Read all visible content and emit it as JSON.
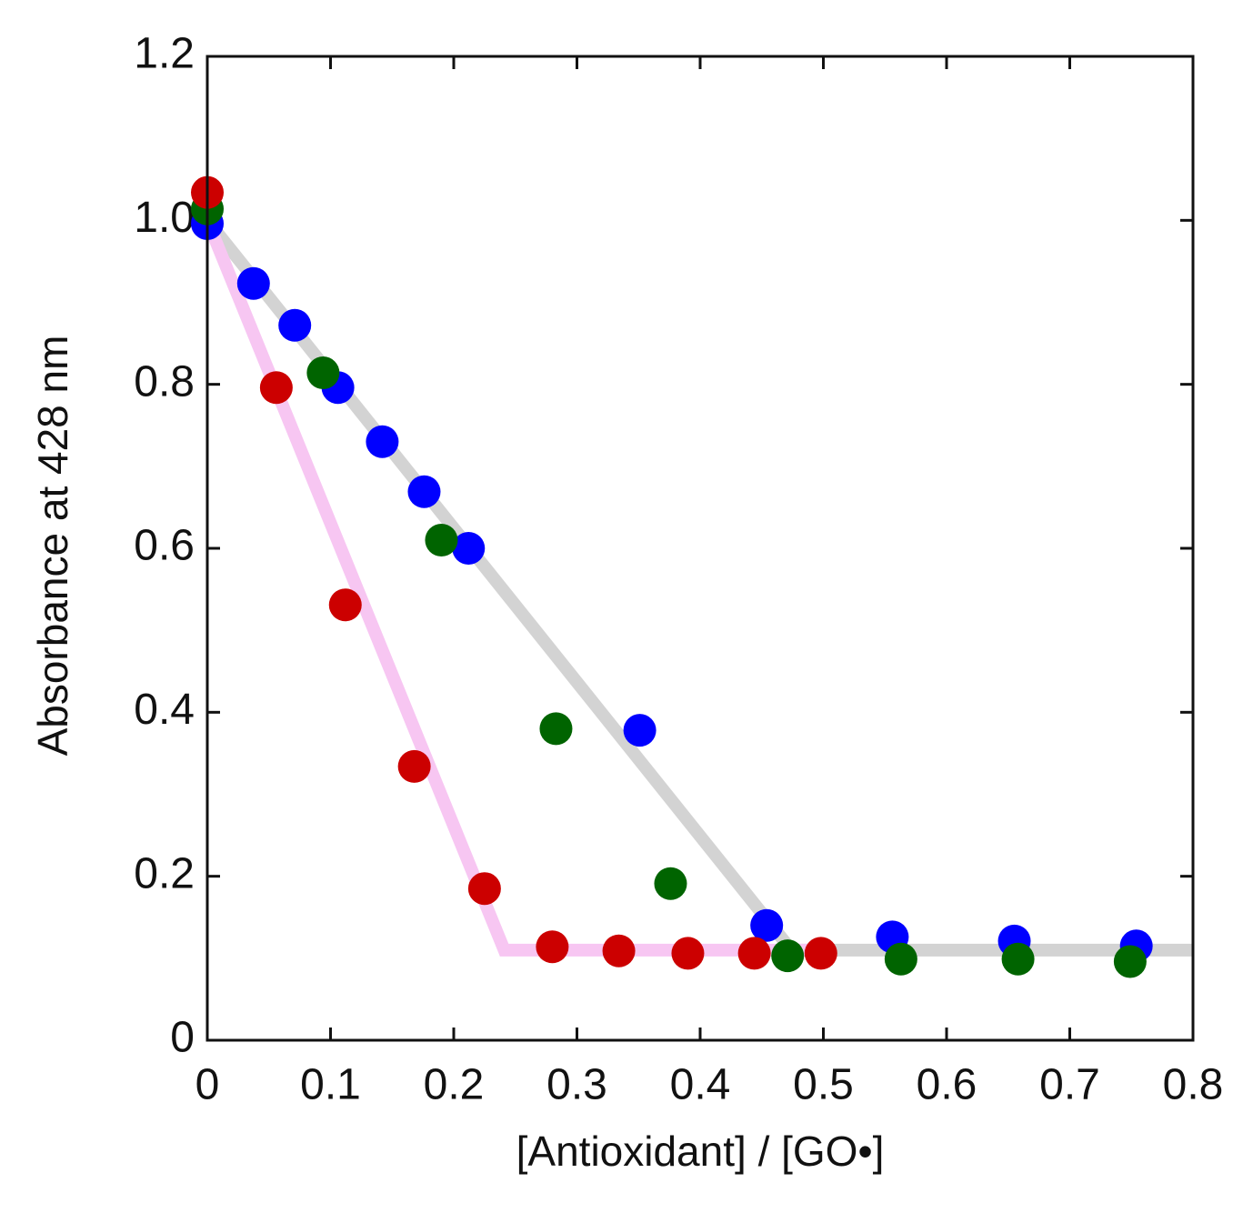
{
  "chart_data": {
    "type": "scatter",
    "x_label": "[Antioxidant] / [GO•]",
    "y_label": "Absorbance at 428 nm",
    "xlim": [
      0,
      0.8
    ],
    "xticks": [
      0,
      0.1,
      0.2,
      0.3,
      0.4,
      0.5,
      0.6,
      0.7,
      0.8
    ],
    "ylim": [
      0,
      1.2
    ],
    "yticks": [
      0,
      0.2,
      0.4,
      0.6,
      0.8,
      {
        "value": 1,
        "label": "1.0"
      },
      1.2
    ],
    "fit_lines": [
      {
        "color": "#d3d3d3",
        "x": [
          0,
          0.474,
          0.8
        ],
        "values": [
          1.0,
          0.11,
          0.11
        ]
      },
      {
        "color": "#f7c6f2",
        "x": [
          0,
          0.241,
          0.5
        ],
        "values": [
          1.0,
          0.11,
          0.11
        ]
      }
    ],
    "series": [
      {
        "color": "#0000ff",
        "x": [
          0,
          0.0375,
          0.071,
          0.106,
          0.142,
          0.176,
          0.212,
          0.351,
          0.454,
          0.556,
          0.655,
          0.754
        ],
        "values": [
          0.996,
          0.923,
          0.872,
          0.796,
          0.73,
          0.669,
          0.6,
          0.378,
          0.14,
          0.126,
          0.121,
          0.115
        ]
      },
      {
        "color": "#006400",
        "x": [
          0,
          0.094,
          0.19,
          0.283,
          0.376,
          0.471,
          0.563,
          0.658,
          0.749
        ],
        "values": [
          1.014,
          0.814,
          0.61,
          0.38,
          0.191,
          0.103,
          0.099,
          0.099,
          0.096
        ]
      },
      {
        "color": "#cc0000",
        "x": [
          0,
          0.056,
          0.112,
          0.168,
          0.225,
          0.28,
          0.334,
          0.39,
          0.444,
          0.498
        ],
        "values": [
          1.034,
          0.796,
          0.531,
          0.334,
          0.185,
          0.114,
          0.109,
          0.106,
          0.106,
          0.106
        ]
      }
    ]
  }
}
